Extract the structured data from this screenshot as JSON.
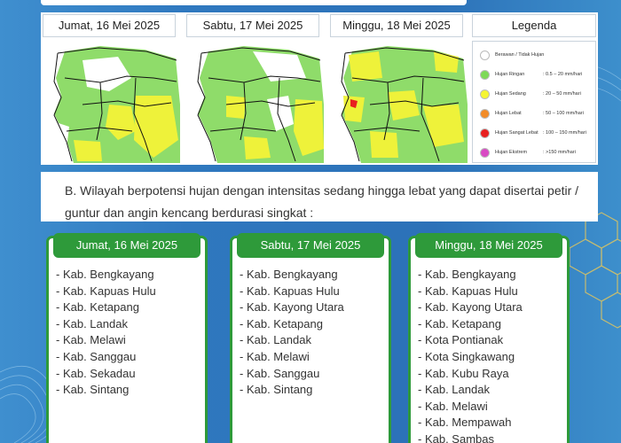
{
  "maps": [
    {
      "date": "Jumat, 16 Mei 2025"
    },
    {
      "date": "Sabtu, 17 Mei 2025"
    },
    {
      "date": "Minggu, 18 Mei 2025"
    }
  ],
  "legend": {
    "title": "Legenda",
    "items": [
      {
        "label": "Berawan / Tidak Hujan",
        "range": "",
        "color": "#ffffff"
      },
      {
        "label": "Hujan Ringan",
        "range": ": 0.5 – 20 mm/hari",
        "color": "#7ed957"
      },
      {
        "label": "Hujan Sedang",
        "range": ": 20 – 50 mm/hari",
        "color": "#f5f532"
      },
      {
        "label": "Hujan Lebat",
        "range": ": 50 – 100 mm/hari",
        "color": "#f28c28"
      },
      {
        "label": "Hujan Sangat Lebat",
        "range": ": 100 – 150 mm/hari",
        "color": "#e82020"
      },
      {
        "label": "Hujan Ekstrem",
        "range": ": >150 mm/hari",
        "color": "#d94ac4"
      }
    ]
  },
  "section_b": {
    "text": "B. Wilayah berpotensi hujan dengan intensitas sedang hingga lebat yang dapat disertai petir / guntur dan angin kencang berdurasi singkat :"
  },
  "lists": [
    {
      "date": "Jumat, 16 Mei 2025",
      "items": [
        "- Kab. Bengkayang",
        "- Kab. Kapuas Hulu",
        "- Kab. Ketapang",
        "- Kab. Landak",
        "- Kab. Melawi",
        "- Kab. Sanggau",
        "- Kab. Sekadau",
        "- Kab. Sintang"
      ]
    },
    {
      "date": "Sabtu, 17 Mei 2025",
      "items": [
        "- Kab. Bengkayang",
        "- Kab. Kapuas Hulu",
        "- Kab. Kayong Utara",
        "- Kab. Ketapang",
        "- Kab. Landak",
        "- Kab. Melawi",
        "- Kab. Sanggau",
        "- Kab. Sintang"
      ]
    },
    {
      "date": "Minggu, 18 Mei 2025",
      "items": [
        "- Kab. Bengkayang",
        "- Kab. Kapuas Hulu",
        "- Kab. Kayong Utara",
        "- Kab. Ketapang",
        "- Kota Pontianak",
        "- Kota Singkawang",
        "- Kab. Kubu Raya",
        "- Kab. Landak",
        "- Kab. Melawi",
        "- Kab. Mempawah",
        "- Kab. Sambas"
      ]
    }
  ]
}
